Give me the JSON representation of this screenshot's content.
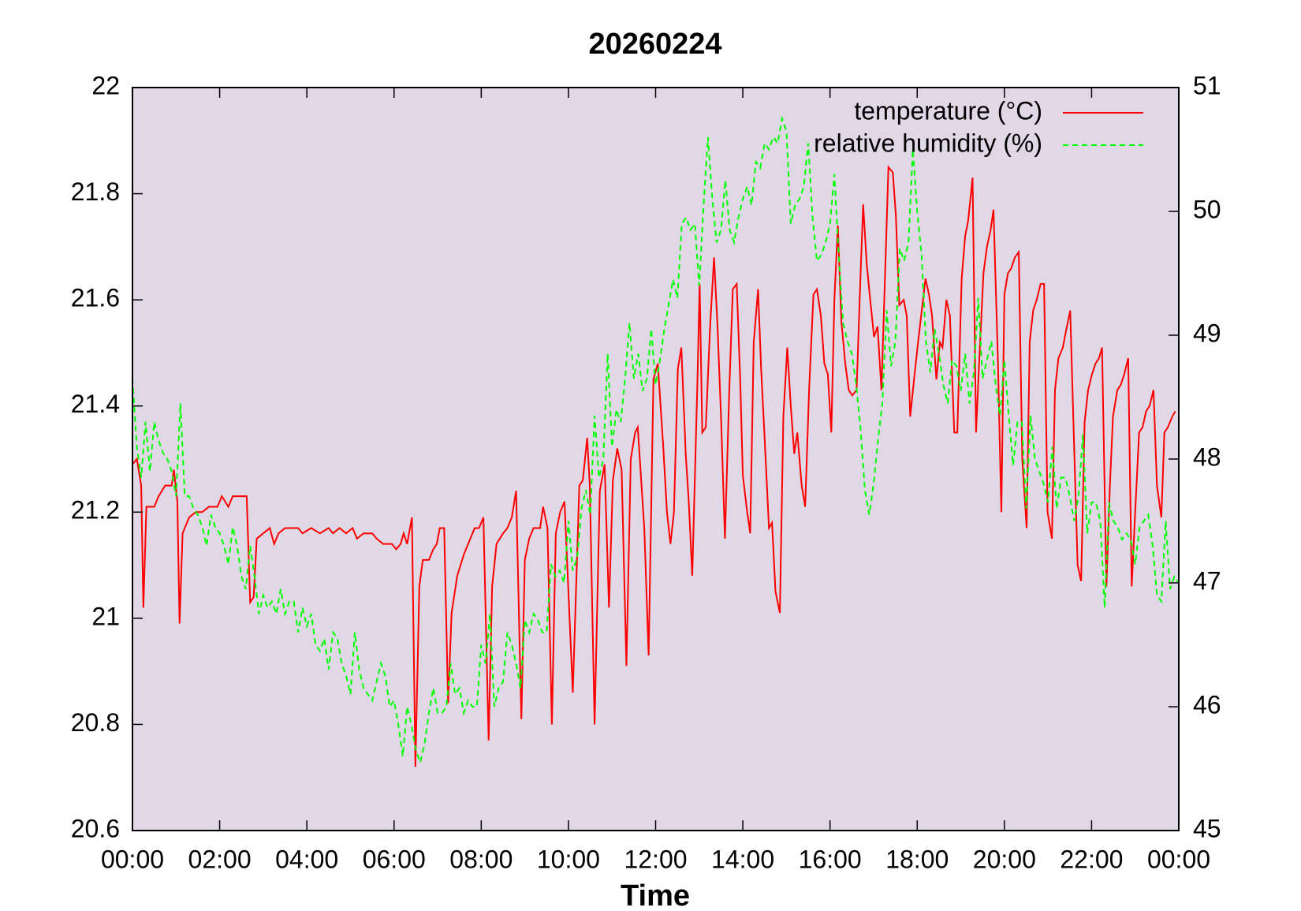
{
  "chart_data": {
    "type": "line",
    "title": "20260224",
    "x_label": "Time",
    "xlim": [
      0,
      24
    ],
    "xticks": [
      {
        "value": 0,
        "label": "00:00"
      },
      {
        "value": 2,
        "label": "02:00"
      },
      {
        "value": 4,
        "label": "04:00"
      },
      {
        "value": 6,
        "label": "06:00"
      },
      {
        "value": 8,
        "label": "08:00"
      },
      {
        "value": 10,
        "label": "10:00"
      },
      {
        "value": 12,
        "label": "12:00"
      },
      {
        "value": 14,
        "label": "14:00"
      },
      {
        "value": 16,
        "label": "16:00"
      },
      {
        "value": 18,
        "label": "18:00"
      },
      {
        "value": 20,
        "label": "20:00"
      },
      {
        "value": 22,
        "label": "22:00"
      },
      {
        "value": 24,
        "label": "00:00"
      }
    ],
    "ylim": [
      20.6,
      22
    ],
    "yticks": [
      20.6,
      20.8,
      21,
      21.2,
      21.4,
      21.6,
      21.8,
      22
    ],
    "y2lim": [
      45,
      51
    ],
    "y2ticks": [
      45,
      46,
      47,
      48,
      49,
      50,
      51
    ],
    "legend": "upper right",
    "background": "#e0d8e6",
    "series": [
      {
        "name": "temperature (°C)",
        "color": "#ff0000",
        "dash": "solid",
        "x": [
          0,
          0.1,
          0.2,
          0.25,
          0.32,
          0.5,
          0.6,
          0.75,
          0.9,
          0.95,
          1.03,
          1.08,
          1.15,
          1.3,
          1.45,
          1.6,
          1.75,
          1.95,
          2.05,
          2.2,
          2.3,
          2.62,
          2.7,
          2.78,
          2.85,
          3,
          3.15,
          3.25,
          3.35,
          3.5,
          3.8,
          3.9,
          4.1,
          4.3,
          4.5,
          4.6,
          4.75,
          4.9,
          5.05,
          5.15,
          5.3,
          5.5,
          5.6,
          5.75,
          5.95,
          6.05,
          6.15,
          6.22,
          6.3,
          6.41,
          6.49,
          6.58,
          6.66,
          6.8,
          6.9,
          6.98,
          7.05,
          7.15,
          7.24,
          7.32,
          7.45,
          7.6,
          7.75,
          7.85,
          7.95,
          8.05,
          8.17,
          8.25,
          8.35,
          8.5,
          8.6,
          8.7,
          8.8,
          8.92,
          9,
          9.1,
          9.2,
          9.35,
          9.42,
          9.52,
          9.62,
          9.71,
          9.81,
          9.91,
          10.1,
          10.25,
          10.33,
          10.43,
          10.49,
          10.6,
          10.72,
          10.83,
          10.93,
          11.02,
          11.12,
          11.22,
          11.33,
          11.43,
          11.53,
          11.59,
          11.74,
          11.84,
          11.95,
          12.05,
          12.17,
          12.26,
          12.34,
          12.42,
          12.51,
          12.59,
          12.69,
          12.76,
          12.84,
          12.96,
          13.01,
          13.07,
          13.15,
          13.25,
          13.34,
          13.42,
          13.5,
          13.59,
          13.69,
          13.77,
          13.86,
          13.94,
          14,
          14.1,
          14.17,
          14.25,
          14.35,
          14.42,
          14.5,
          14.6,
          14.67,
          14.75,
          14.85,
          14.93,
          15.02,
          15.1,
          15.18,
          15.25,
          15.35,
          15.43,
          15.52,
          15.62,
          15.7,
          15.79,
          15.87,
          15.95,
          16.03,
          16.1,
          16.18,
          16.26,
          16.35,
          16.43,
          16.51,
          16.61,
          16.68,
          16.76,
          16.84,
          16.91,
          17.01,
          17.09,
          17.18,
          17.26,
          17.34,
          17.44,
          17.51,
          17.59,
          17.69,
          17.76,
          17.84,
          17.94,
          18.02,
          18.09,
          18.19,
          18.27,
          18.34,
          18.44,
          18.52,
          18.58,
          18.67,
          18.75,
          18.85,
          18.92,
          19.02,
          19.1,
          19.17,
          19.27,
          19.35,
          19.42,
          19.52,
          19.6,
          19.68,
          19.75,
          19.85,
          19.93,
          20,
          20.08,
          20.16,
          20.24,
          20.33,
          20.41,
          20.51,
          20.58,
          20.66,
          20.74,
          20.83,
          20.91,
          20.99,
          21.09,
          21.16,
          21.24,
          21.34,
          21.41,
          21.51,
          21.59,
          21.68,
          21.76,
          21.84,
          21.92,
          22.01,
          22.09,
          22.17,
          22.24,
          22.34,
          22.42,
          22.49,
          22.59,
          22.67,
          22.75,
          22.84,
          22.92,
          23,
          23.09,
          23.17,
          23.25,
          23.33,
          23.42,
          23.5,
          23.6,
          23.67,
          23.75,
          23.85,
          23.92
        ],
        "values": [
          21.29,
          21.3,
          21.25,
          21.02,
          21.21,
          21.21,
          21.23,
          21.25,
          21.25,
          21.28,
          21.22,
          20.99,
          21.16,
          21.19,
          21.2,
          21.2,
          21.21,
          21.21,
          21.23,
          21.21,
          21.23,
          21.23,
          21.03,
          21.04,
          21.15,
          21.16,
          21.17,
          21.14,
          21.16,
          21.17,
          21.17,
          21.16,
          21.17,
          21.16,
          21.17,
          21.16,
          21.17,
          21.16,
          21.17,
          21.15,
          21.16,
          21.16,
          21.15,
          21.14,
          21.14,
          21.13,
          21.14,
          21.16,
          21.14,
          21.19,
          20.72,
          21.06,
          21.11,
          21.11,
          21.13,
          21.14,
          21.17,
          21.17,
          20.84,
          21.01,
          21.08,
          21.12,
          21.15,
          21.17,
          21.17,
          21.19,
          20.77,
          21.06,
          21.14,
          21.16,
          21.17,
          21.19,
          21.24,
          20.81,
          21.11,
          21.15,
          21.17,
          21.17,
          21.21,
          21.17,
          20.8,
          21.16,
          21.2,
          21.22,
          20.86,
          21.25,
          21.26,
          21.34,
          21.25,
          20.8,
          21.24,
          21.29,
          21.02,
          21.26,
          21.32,
          21.28,
          20.91,
          21.3,
          21.35,
          21.36,
          21.17,
          20.93,
          21.45,
          21.48,
          21.33,
          21.2,
          21.14,
          21.2,
          21.47,
          21.51,
          21.31,
          21.22,
          21.08,
          21.45,
          21.63,
          21.35,
          21.36,
          21.55,
          21.68,
          21.55,
          21.38,
          21.15,
          21.43,
          21.62,
          21.63,
          21.45,
          21.27,
          21.2,
          21.16,
          21.52,
          21.62,
          21.47,
          21.34,
          21.17,
          21.18,
          21.05,
          21.01,
          21.38,
          21.51,
          21.4,
          21.31,
          21.35,
          21.25,
          21.21,
          21.43,
          21.61,
          21.62,
          21.57,
          21.48,
          21.46,
          21.35,
          21.6,
          21.74,
          21.56,
          21.48,
          21.43,
          21.42,
          21.43,
          21.6,
          21.78,
          21.67,
          21.61,
          21.53,
          21.55,
          21.43,
          21.64,
          21.85,
          21.84,
          21.76,
          21.59,
          21.6,
          21.57,
          21.38,
          21.46,
          21.52,
          21.57,
          21.64,
          21.61,
          21.57,
          21.45,
          21.52,
          21.51,
          21.6,
          21.57,
          21.35,
          21.35,
          21.64,
          21.72,
          21.75,
          21.83,
          21.35,
          21.48,
          21.65,
          21.7,
          21.73,
          21.77,
          21.49,
          21.2,
          21.61,
          21.65,
          21.66,
          21.68,
          21.69,
          21.3,
          21.17,
          21.52,
          21.58,
          21.6,
          21.63,
          21.63,
          21.2,
          21.15,
          21.43,
          21.49,
          21.51,
          21.54,
          21.58,
          21.35,
          21.1,
          21.07,
          21.37,
          21.43,
          21.46,
          21.48,
          21.49,
          21.51,
          21.06,
          21.25,
          21.38,
          21.43,
          21.44,
          21.46,
          21.49,
          21.06,
          21.2,
          21.35,
          21.36,
          21.39,
          21.4,
          21.43,
          21.25,
          21.19,
          21.35,
          21.36,
          21.38,
          21.39
        ]
      },
      {
        "name": "relative humidity (%)",
        "color": "#00ff00",
        "dash": "dashed",
        "axis": "y2",
        "x": [
          0,
          0.1,
          0.2,
          0.3,
          0.4,
          0.5,
          0.6,
          0.7,
          0.8,
          0.9,
          1,
          1.1,
          1.2,
          1.3,
          1.4,
          1.5,
          1.6,
          1.7,
          1.8,
          1.9,
          2,
          2.1,
          2.2,
          2.3,
          2.4,
          2.5,
          2.6,
          2.7,
          2.8,
          2.9,
          3,
          3.1,
          3.2,
          3.3,
          3.4,
          3.5,
          3.6,
          3.7,
          3.8,
          3.9,
          4,
          4.1,
          4.2,
          4.3,
          4.4,
          4.5,
          4.6,
          4.7,
          4.8,
          4.9,
          5,
          5.1,
          5.2,
          5.3,
          5.4,
          5.5,
          5.6,
          5.7,
          5.8,
          5.9,
          6,
          6.1,
          6.2,
          6.3,
          6.4,
          6.5,
          6.6,
          6.7,
          6.8,
          6.9,
          7,
          7.1,
          7.2,
          7.3,
          7.4,
          7.5,
          7.6,
          7.7,
          7.8,
          7.9,
          8,
          8.1,
          8.2,
          8.3,
          8.4,
          8.5,
          8.6,
          8.7,
          8.8,
          8.9,
          9,
          9.1,
          9.2,
          9.3,
          9.4,
          9.5,
          9.6,
          9.7,
          9.8,
          9.9,
          10,
          10.1,
          10.2,
          10.3,
          10.4,
          10.5,
          10.6,
          10.7,
          10.8,
          10.9,
          11,
          11.1,
          11.2,
          11.3,
          11.4,
          11.5,
          11.6,
          11.7,
          11.8,
          11.9,
          12,
          12.1,
          12.2,
          12.3,
          12.4,
          12.5,
          12.6,
          12.7,
          12.8,
          12.9,
          13,
          13.1,
          13.2,
          13.3,
          13.4,
          13.5,
          13.6,
          13.7,
          13.8,
          13.9,
          14,
          14.1,
          14.2,
          14.3,
          14.4,
          14.5,
          14.6,
          14.7,
          14.8,
          14.9,
          15,
          15.1,
          15.2,
          15.3,
          15.4,
          15.5,
          15.6,
          15.7,
          15.8,
          15.9,
          16,
          16.1,
          16.2,
          16.3,
          16.4,
          16.5,
          16.6,
          16.7,
          16.8,
          16.9,
          17,
          17.1,
          17.2,
          17.3,
          17.4,
          17.5,
          17.6,
          17.7,
          17.8,
          17.9,
          18,
          18.1,
          18.2,
          18.3,
          18.4,
          18.5,
          18.6,
          18.7,
          18.8,
          18.9,
          19,
          19.1,
          19.2,
          19.3,
          19.4,
          19.5,
          19.6,
          19.7,
          19.8,
          19.9,
          20,
          20.1,
          20.2,
          20.3,
          20.4,
          20.5,
          20.6,
          20.7,
          20.8,
          20.9,
          21,
          21.1,
          21.2,
          21.3,
          21.4,
          21.5,
          21.6,
          21.7,
          21.8,
          21.9,
          22,
          22.1,
          22.2,
          22.3,
          22.4,
          22.5,
          22.6,
          22.7,
          22.8,
          22.9,
          23,
          23.1,
          23.2,
          23.3,
          23.4,
          23.5,
          23.6,
          23.7,
          23.8,
          23.9,
          24
        ],
        "values": [
          48.65,
          48.1,
          47.85,
          48.3,
          47.9,
          48.3,
          48.15,
          48.05,
          48,
          47.9,
          47.7,
          48.45,
          47.7,
          47.7,
          47.6,
          47.55,
          47.45,
          47.3,
          47.55,
          47.45,
          47.4,
          47.3,
          47.15,
          47.45,
          47.3,
          47.05,
          46.95,
          47.3,
          47.05,
          46.75,
          46.9,
          46.8,
          46.85,
          46.75,
          46.95,
          46.75,
          46.85,
          46.85,
          46.6,
          46.8,
          46.65,
          46.75,
          46.5,
          46.45,
          46.55,
          46.3,
          46.6,
          46.55,
          46.35,
          46.25,
          46.1,
          46.6,
          46.3,
          46.15,
          46.1,
          46.05,
          46.2,
          46.35,
          46.25,
          46,
          46.05,
          45.85,
          45.6,
          46,
          45.85,
          45.65,
          45.55,
          45.7,
          45.95,
          46.15,
          45.95,
          45.95,
          46,
          46.35,
          46.1,
          46.15,
          45.95,
          46.05,
          46,
          46,
          46.5,
          46.35,
          46.75,
          46,
          46.15,
          46.2,
          46.6,
          46.5,
          46.35,
          46.15,
          46.7,
          46.6,
          46.75,
          46.7,
          46.6,
          46.6,
          47.15,
          47.05,
          47.1,
          47,
          47.5,
          47.1,
          47.2,
          47.6,
          47.75,
          47.55,
          48.35,
          47.85,
          48,
          48.85,
          48.1,
          48.4,
          48.3,
          48.65,
          49.1,
          48.65,
          48.85,
          48.55,
          48.65,
          49.05,
          48.6,
          48.8,
          49.05,
          49.25,
          49.45,
          49.3,
          49.9,
          49.95,
          49.85,
          49.9,
          49.4,
          50.05,
          50.6,
          50.1,
          49.75,
          49.85,
          50.25,
          49.85,
          49.75,
          49.95,
          50.1,
          50.2,
          50.05,
          50.4,
          50.35,
          50.55,
          50.5,
          50.6,
          50.55,
          50.75,
          50.65,
          49.9,
          50.05,
          50.1,
          50.2,
          50.55,
          49.95,
          49.6,
          49.65,
          49.75,
          49.9,
          50.3,
          49.65,
          49.1,
          48.95,
          48.85,
          48.6,
          48.25,
          47.75,
          47.55,
          47.8,
          48.15,
          48.45,
          49.2,
          48.75,
          48.95,
          49.7,
          49.6,
          49.75,
          50.5,
          50,
          49.65,
          48.95,
          48.7,
          49.05,
          48.85,
          48.6,
          48.45,
          48.8,
          48.75,
          48.55,
          48.85,
          48.45,
          48.7,
          49.3,
          48.65,
          48.8,
          48.95,
          48.6,
          48.35,
          48.8,
          48.35,
          47.95,
          48.3,
          48.3,
          47.6,
          48.35,
          48,
          47.9,
          47.8,
          47.65,
          48.1,
          47.6,
          47.85,
          47.85,
          47.7,
          47.5,
          47.7,
          48.2,
          47.4,
          47.65,
          47.65,
          47.5,
          46.8,
          47.65,
          47.5,
          47.45,
          47.35,
          47.4,
          47.35,
          47.15,
          47.45,
          47.5,
          47.55,
          47.3,
          46.9,
          46.85,
          47.5,
          46.95,
          47.05,
          47
        ]
      }
    ]
  }
}
